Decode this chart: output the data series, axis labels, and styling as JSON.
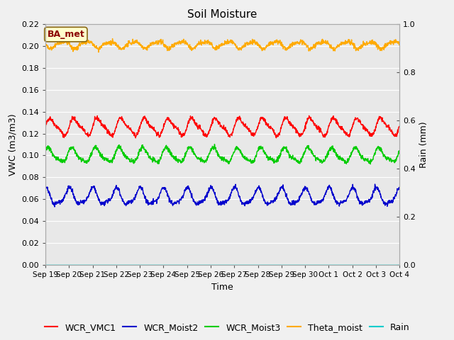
{
  "title": "Soil Moisture",
  "ylabel_left": "VWC (m3/m3)",
  "ylabel_right": "Rain (mm)",
  "xlabel": "Time",
  "annotation": "BA_met",
  "ylim_left": [
    0.0,
    0.22
  ],
  "ylim_right": [
    0.0,
    1.0
  ],
  "yticks_left": [
    0.0,
    0.02,
    0.04,
    0.06,
    0.08,
    0.1,
    0.12,
    0.14,
    0.16,
    0.18,
    0.2,
    0.22
  ],
  "yticks_right": [
    0.0,
    0.2,
    0.4,
    0.6,
    0.8,
    1.0
  ],
  "n_points": 1500,
  "series": {
    "WCR_VMC1": {
      "color": "#ff0000",
      "mean": 0.126,
      "amplitude": 0.007,
      "period_days": 1.0,
      "phase": 0.0
    },
    "WCR_Moist2": {
      "color": "#0000cc",
      "mean": 0.062,
      "amplitude": 0.007,
      "period_days": 1.0,
      "phase": 0.25
    },
    "WCR_Moist3": {
      "color": "#00cc00",
      "mean": 0.1,
      "amplitude": 0.006,
      "period_days": 1.0,
      "phase": 0.1
    },
    "Theta_moist": {
      "color": "#ffaa00",
      "mean": 0.201,
      "amplitude": 0.003,
      "period_days": 1.0,
      "phase": 0.5
    },
    "Rain": {
      "color": "#00cccc",
      "mean": 0.0,
      "amplitude": 0.0,
      "period_days": 1.0,
      "phase": 0.0
    }
  },
  "xtick_labels": [
    "Sep 19",
    "Sep 20",
    "Sep 21",
    "Sep 22",
    "Sep 23",
    "Sep 24",
    "Sep 25",
    "Sep 26",
    "Sep 27",
    "Sep 28",
    "Sep 29",
    "Sep 30",
    "Oct 1",
    "Oct 2",
    "Oct 3",
    "Oct 4"
  ],
  "background_color": "#e8e8e8",
  "grid_color": "#ffffff",
  "title_fontsize": 11,
  "axis_fontsize": 9,
  "tick_fontsize": 8,
  "legend_fontsize": 9
}
